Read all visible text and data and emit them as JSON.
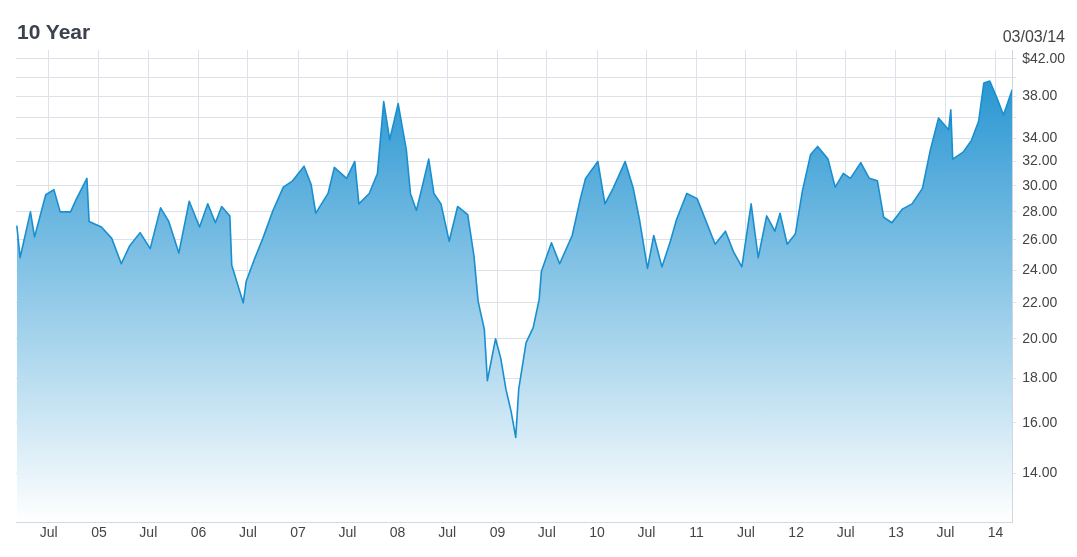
{
  "chart_data": {
    "type": "area",
    "title": "10 Year",
    "subtitle": "03/03/14",
    "x": [
      "2004-03-06",
      "2004-03-18",
      "2004-04-25",
      "2004-05-10",
      "2004-06-20",
      "2004-07-20",
      "2004-08-12",
      "2004-09-19",
      "2004-10-11",
      "2004-11-18",
      "2004-11-26",
      "2005-01-10",
      "2005-02-17",
      "2005-03-24",
      "2005-04-24",
      "2005-06-01",
      "2005-07-08",
      "2005-08-15",
      "2005-09-14",
      "2005-10-21",
      "2005-11-28",
      "2006-01-05",
      "2006-02-04",
      "2006-03-04",
      "2006-03-27",
      "2006-04-26",
      "2006-05-03",
      "2006-06-14",
      "2006-06-25",
      "2006-07-25",
      "2006-08-25",
      "2006-10-01",
      "2006-11-08",
      "2006-12-12",
      "2007-01-23",
      "2007-02-18",
      "2007-03-07",
      "2007-04-21",
      "2007-05-14",
      "2007-06-28",
      "2007-07-28",
      "2007-08-12",
      "2007-09-19",
      "2007-10-19",
      "2007-11-11",
      "2007-12-03",
      "2008-01-03",
      "2008-02-02",
      "2008-02-17",
      "2008-03-10",
      "2008-04-02",
      "2008-04-24",
      "2008-05-13",
      "2008-06-08",
      "2008-07-08",
      "2008-08-08",
      "2008-09-14",
      "2008-10-07",
      "2008-10-22",
      "2008-11-14",
      "2008-11-25",
      "2008-12-25",
      "2009-01-13",
      "2009-02-01",
      "2009-02-20",
      "2009-03-09",
      "2009-03-20",
      "2009-04-16",
      "2009-05-12",
      "2009-06-03",
      "2009-06-11",
      "2009-07-18",
      "2009-08-17",
      "2009-10-02",
      "2009-11-01",
      "2009-11-20",
      "2010-01-04",
      "2010-01-30",
      "2010-03-01",
      "2010-04-14",
      "2010-05-14",
      "2010-06-06",
      "2010-07-05",
      "2010-07-28",
      "2010-08-27",
      "2010-09-27",
      "2010-10-19",
      "2010-11-26",
      "2011-01-03",
      "2011-03-10",
      "2011-04-17",
      "2011-05-16",
      "2011-06-16",
      "2011-07-20",
      "2011-08-15",
      "2011-09-15",
      "2011-10-15",
      "2011-11-03",
      "2011-11-29",
      "2011-12-29",
      "2012-01-24",
      "2012-02-23",
      "2012-03-20",
      "2012-04-27",
      "2012-05-23",
      "2012-06-22",
      "2012-07-18",
      "2012-08-25",
      "2012-09-25",
      "2012-10-25",
      "2012-11-17",
      "2012-12-17",
      "2013-01-24",
      "2013-03-01",
      "2013-04-08",
      "2013-05-07",
      "2013-06-06",
      "2013-07-13",
      "2013-07-21",
      "2013-07-28",
      "2013-09-04",
      "2013-10-04",
      "2013-10-31",
      "2013-11-19",
      "2013-12-11",
      "2014-01-07",
      "2014-01-30",
      "2014-03-03"
    ],
    "series": [
      {
        "color": "#1a8fcf",
        "values": [
          27.0,
          24.8,
          28.0,
          26.2,
          29.3,
          29.7,
          28.0,
          28.0,
          29.0,
          30.6,
          27.3,
          26.9,
          26.1,
          24.4,
          25.6,
          26.5,
          25.4,
          28.3,
          27.3,
          25.1,
          28.8,
          26.9,
          28.6,
          27.2,
          28.4,
          27.7,
          24.3,
          22.0,
          23.3,
          24.7,
          26.1,
          28.1,
          29.9,
          30.4,
          31.6,
          30.1,
          27.9,
          29.4,
          31.5,
          30.6,
          32.0,
          28.6,
          29.4,
          31.0,
          37.5,
          33.9,
          37.3,
          33.0,
          29.4,
          28.1,
          30.1,
          32.2,
          29.4,
          28.6,
          25.9,
          28.4,
          27.8,
          24.9,
          22.1,
          20.5,
          17.9,
          20.0,
          19.0,
          17.5,
          16.5,
          15.4,
          17.5,
          19.8,
          20.6,
          22.2,
          23.9,
          25.8,
          24.4,
          26.3,
          29.0,
          30.6,
          32.0,
          28.6,
          29.8,
          32.0,
          29.8,
          27.4,
          24.1,
          26.3,
          24.2,
          25.9,
          27.4,
          29.4,
          29.0,
          25.7,
          26.6,
          25.2,
          24.2,
          28.6,
          24.8,
          27.7,
          26.6,
          27.9,
          25.7,
          26.4,
          29.6,
          32.6,
          33.3,
          32.2,
          29.9,
          31.0,
          30.6,
          31.9,
          30.6,
          30.4,
          27.6,
          27.2,
          28.2,
          28.6,
          29.8,
          33.0,
          35.9,
          34.8,
          36.7,
          32.2,
          32.8,
          33.8,
          35.6,
          39.4,
          39.6,
          37.8,
          36.2,
          38.7
        ]
      }
    ],
    "xlim": [
      "2004-03-03",
      "2014-03-03"
    ],
    "xticks": [
      {
        "value": "2004-07-01",
        "label": "Jul"
      },
      {
        "value": "2005-01-01",
        "label": "05"
      },
      {
        "value": "2005-07-01",
        "label": "Jul"
      },
      {
        "value": "2006-01-01",
        "label": "06"
      },
      {
        "value": "2006-07-01",
        "label": "Jul"
      },
      {
        "value": "2007-01-01",
        "label": "07"
      },
      {
        "value": "2007-07-01",
        "label": "Jul"
      },
      {
        "value": "2008-01-01",
        "label": "08"
      },
      {
        "value": "2008-07-01",
        "label": "Jul"
      },
      {
        "value": "2009-01-01",
        "label": "09"
      },
      {
        "value": "2009-07-01",
        "label": "Jul"
      },
      {
        "value": "2010-01-01",
        "label": "10"
      },
      {
        "value": "2010-07-01",
        "label": "Jul"
      },
      {
        "value": "2011-01-01",
        "label": "11"
      },
      {
        "value": "2011-07-01",
        "label": "Jul"
      },
      {
        "value": "2012-01-01",
        "label": "12"
      },
      {
        "value": "2012-07-01",
        "label": "Jul"
      },
      {
        "value": "2013-01-01",
        "label": "13"
      },
      {
        "value": "2013-07-01",
        "label": "Jul"
      },
      {
        "value": "2014-01-01",
        "label": "14"
      }
    ],
    "ylim": [
      12.3,
      43
    ],
    "yticks": [
      {
        "value": 14,
        "label": "14.00"
      },
      {
        "value": 16,
        "label": "16.00"
      },
      {
        "value": 18,
        "label": "18.00"
      },
      {
        "value": 20,
        "label": "20.00"
      },
      {
        "value": 22,
        "label": "22.00"
      },
      {
        "value": 24,
        "label": "24.00"
      },
      {
        "value": 26,
        "label": "26.00"
      },
      {
        "value": 28,
        "label": "28.00"
      },
      {
        "value": 30,
        "label": "30.00"
      },
      {
        "value": 32,
        "label": "32.00"
      },
      {
        "value": 34,
        "label": "34.00"
      },
      {
        "value": 36,
        "label": null
      },
      {
        "value": 38,
        "label": "38.00"
      },
      {
        "value": 40,
        "label": null
      },
      {
        "value": 42,
        "label": "$42.00"
      }
    ],
    "log": "y",
    "grid": true,
    "legend": false,
    "marker": "none",
    "line_style": "solid"
  }
}
